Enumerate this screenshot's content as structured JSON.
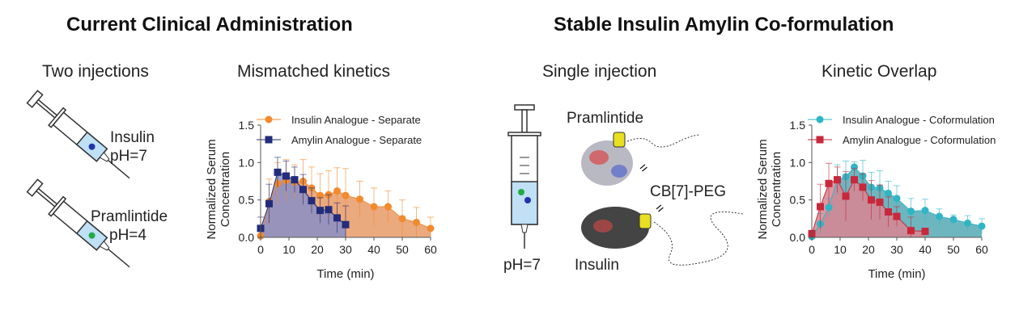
{
  "headings": {
    "left": "Current Clinical Administration",
    "right": "Stable Insulin Amylin Co-formulation"
  },
  "panels": {
    "two_injections": "Two injections",
    "mismatched": "Mismatched kinetics",
    "single_injection": "Single injection",
    "overlap": "Kinetic Overlap"
  },
  "labels": {
    "insulin_syringe": "Insulin",
    "insulin_ph": "pH=7",
    "pram_syringe": "Pramlintide",
    "pram_ph": "pH=4",
    "pram_mol": "Pramlintide",
    "cb7": "CB[7]-PEG",
    "insulin_mol": "Insulin",
    "single_ph": "pH=7",
    "equiv1": "=",
    "equiv2": "="
  },
  "chart_data": [
    {
      "type": "area",
      "xlabel": "Time (min)",
      "ylabel": "Normalized Serum Concentration",
      "xlim": [
        0,
        60
      ],
      "ylim": [
        0,
        1.5
      ],
      "xticks": [
        0,
        10,
        20,
        30,
        40,
        50,
        60
      ],
      "yticks": [
        "0.0",
        "0.5",
        "1.0",
        "1.5"
      ],
      "legend": "top",
      "series": [
        {
          "name": "Insulin Analogue - Separate",
          "color": "#f28a2e",
          "fill": "#e9a070",
          "marker": "circle",
          "x": [
            0,
            3,
            6,
            9,
            12,
            15,
            18,
            21,
            24,
            27,
            30,
            35,
            40,
            45,
            50,
            55,
            60
          ],
          "y": [
            0.02,
            0.48,
            0.72,
            0.76,
            0.74,
            0.75,
            0.66,
            0.56,
            0.57,
            0.62,
            0.56,
            0.51,
            0.41,
            0.41,
            0.25,
            0.2,
            0.12
          ],
          "err": [
            0.02,
            0.3,
            0.28,
            0.28,
            0.23,
            0.29,
            0.28,
            0.29,
            0.32,
            0.31,
            0.36,
            0.24,
            0.25,
            0.21,
            0.25,
            0.2,
            0.15
          ]
        },
        {
          "name": "Amylin Analogue - Separate",
          "color": "#232c7a",
          "fill": "#8a8fc4",
          "marker": "square",
          "x": [
            0,
            3,
            6,
            9,
            12,
            15,
            18,
            21,
            24,
            27,
            30
          ],
          "y": [
            0.12,
            0.45,
            0.87,
            0.82,
            0.77,
            0.64,
            0.49,
            0.36,
            0.37,
            0.26,
            0.17
          ],
          "err": [
            0.15,
            0.26,
            0.2,
            0.2,
            0.17,
            0.2,
            0.17,
            0.17,
            0.2,
            0.2,
            0.25
          ]
        }
      ]
    },
    {
      "type": "area",
      "xlabel": "Time (min)",
      "ylabel": "Normalized Serum Concentration",
      "xlim": [
        0,
        60
      ],
      "ylim": [
        0,
        1.5
      ],
      "xticks": [
        0,
        10,
        20,
        30,
        40,
        50,
        60
      ],
      "yticks": [
        "0.0",
        "0.5",
        "1.0",
        "1.5"
      ],
      "legend": "top",
      "series": [
        {
          "name": "Insulin Analogue - Coformulation",
          "color": "#2fb5c4",
          "fill": "#5eaeb8",
          "marker": "circle",
          "x": [
            0,
            3,
            6,
            9,
            12,
            15,
            18,
            21,
            24,
            27,
            30,
            35,
            40,
            45,
            50,
            55,
            60
          ],
          "y": [
            0.01,
            0.18,
            0.4,
            0.77,
            0.81,
            0.94,
            0.82,
            0.67,
            0.66,
            0.59,
            0.52,
            0.35,
            0.36,
            0.28,
            0.24,
            0.19,
            0.15
          ],
          "err": [
            0.02,
            0.14,
            0.12,
            0.2,
            0.21,
            0.07,
            0.21,
            0.2,
            0.23,
            0.16,
            0.17,
            0.17,
            0.15,
            0.1,
            0.06,
            0.1,
            0.1
          ]
        },
        {
          "name": "Amylin Analogue - Coformulation",
          "color": "#c8283c",
          "fill": "#d98590",
          "marker": "square",
          "x": [
            0,
            3,
            6,
            9,
            12,
            15,
            18,
            21,
            24,
            27,
            30,
            35,
            40
          ],
          "y": [
            0.05,
            0.41,
            0.72,
            0.77,
            0.55,
            0.77,
            0.67,
            0.5,
            0.47,
            0.34,
            0.28,
            0.09,
            0.08
          ],
          "err": [
            0.02,
            0.3,
            0.27,
            0.17,
            0.33,
            0.15,
            0.18,
            0.26,
            0.23,
            0.2,
            0.13,
            0.18,
            0.02
          ]
        }
      ]
    }
  ]
}
